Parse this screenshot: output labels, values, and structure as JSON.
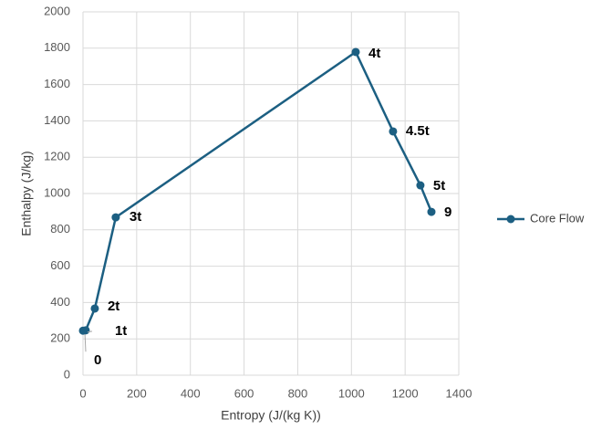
{
  "chart_data": {
    "type": "scatter-line",
    "x_label": "Entropy (J/(kg K))",
    "y_label": "Enthalpy (J/kg)",
    "xlim": [
      0,
      1400
    ],
    "xticks": [
      0,
      200,
      400,
      600,
      800,
      1000,
      1200,
      1400
    ],
    "ylim": [
      0,
      2000
    ],
    "yticks": [
      0,
      200,
      400,
      600,
      800,
      1000,
      1200,
      1400,
      1600,
      1800,
      2000
    ],
    "grid": true,
    "legend": "right",
    "series": [
      {
        "name": "Core Flow",
        "color": "#1c5f82",
        "x": [
          0,
          10,
          44,
          122,
          1016,
          1155,
          1257,
          1298
        ],
        "values": [
          245,
          247,
          367,
          869,
          1779,
          1342,
          1045,
          899
        ],
        "labels": [
          "0",
          "1t",
          "2t",
          "3t",
          "4t",
          "4.5t",
          "5t",
          "9"
        ]
      }
    ]
  }
}
